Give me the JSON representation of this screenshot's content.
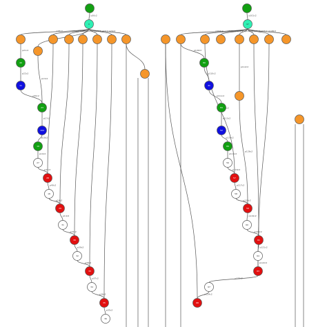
{
  "colors": {
    "orange": "#f5962a",
    "green": "#12a012",
    "blue": "#1010e0",
    "red": "#e21010",
    "cyan": "#2ef0b4",
    "white": "#ffffff",
    "stroke": "#555555"
  },
  "left_graph": {
    "nodes": [
      {
        "id": "L_top_green",
        "color": "green",
        "label": ""
      },
      {
        "id": "L_cyan",
        "color": "cyan",
        "label": "0"
      },
      {
        "id": "L_o1",
        "color": "orange",
        "label": ""
      },
      {
        "id": "L_o2",
        "color": "orange",
        "label": ""
      },
      {
        "id": "L_o3",
        "color": "orange",
        "label": ""
      },
      {
        "id": "L_o4",
        "color": "orange",
        "label": ""
      },
      {
        "id": "L_o5",
        "color": "orange",
        "label": ""
      },
      {
        "id": "L_o6",
        "color": "orange",
        "label": ""
      },
      {
        "id": "L_o7",
        "color": "orange",
        "label": ""
      },
      {
        "id": "L_o8",
        "color": "orange",
        "label": ""
      },
      {
        "id": "L_g1",
        "color": "green",
        "label": "40"
      },
      {
        "id": "L_b1",
        "color": "blue",
        "label": "11"
      },
      {
        "id": "L_o9",
        "color": "orange",
        "label": ""
      },
      {
        "id": "L_g2",
        "color": "green",
        "label": "23"
      },
      {
        "id": "L_b2",
        "color": "blue",
        "label": "194"
      },
      {
        "id": "L_g3",
        "color": "green",
        "label": "19"
      },
      {
        "id": "L_w1",
        "color": "white",
        "label": "27"
      },
      {
        "id": "L_r1",
        "color": "red",
        "label": "28"
      },
      {
        "id": "L_w2",
        "color": "white",
        "label": "18"
      },
      {
        "id": "L_r2",
        "color": "red",
        "label": "29"
      },
      {
        "id": "L_w3",
        "color": "white",
        "label": "31"
      },
      {
        "id": "L_r3",
        "color": "red",
        "label": "30"
      },
      {
        "id": "L_w4",
        "color": "white",
        "label": "32"
      },
      {
        "id": "L_r4",
        "color": "red",
        "label": "33"
      },
      {
        "id": "L_w5",
        "color": "white",
        "label": "34"
      },
      {
        "id": "L_r5",
        "color": "red",
        "label": "35"
      },
      {
        "id": "L_w6",
        "color": "white",
        "label": "36"
      }
    ],
    "edge_labels": [
      "p30c2",
      "p28c2",
      "p29c2",
      "p26c2",
      "p23c2",
      "p24c2",
      "p27c2",
      "p20c2",
      "p25c2",
      "p21c2",
      "p22c2",
      "p30c2",
      "p13c2",
      "p17c2",
      "p18c2",
      "p19c2",
      "p41c2",
      "p40c2",
      "p16c2",
      "p14c2",
      "p15c2",
      "p39c2",
      "p38c2",
      "p37c2",
      "p36c2",
      "p35c2"
    ]
  },
  "right_graph": {
    "nodes": [
      {
        "id": "R_top_green",
        "color": "green",
        "label": ""
      },
      {
        "id": "R_cyan",
        "color": "cyan",
        "label": "97"
      },
      {
        "id": "R_o1",
        "color": "orange",
        "label": ""
      },
      {
        "id": "R_o2",
        "color": "orange",
        "label": ""
      },
      {
        "id": "R_o3",
        "color": "orange",
        "label": ""
      },
      {
        "id": "R_o4",
        "color": "orange",
        "label": ""
      },
      {
        "id": "R_o5",
        "color": "orange",
        "label": ""
      },
      {
        "id": "R_o6",
        "color": "orange",
        "label": ""
      },
      {
        "id": "R_o7",
        "color": "orange",
        "label": ""
      },
      {
        "id": "R_o8",
        "color": "orange",
        "label": ""
      },
      {
        "id": "R_g1",
        "color": "green",
        "label": "80"
      },
      {
        "id": "R_b1",
        "color": "blue",
        "label": "41"
      },
      {
        "id": "R_o9",
        "color": "orange",
        "label": ""
      },
      {
        "id": "R_g2",
        "color": "green",
        "label": "84"
      },
      {
        "id": "R_b2",
        "color": "blue",
        "label": "52"
      },
      {
        "id": "R_g3",
        "color": "green",
        "label": "89"
      },
      {
        "id": "R_w1",
        "color": "white",
        "label": "56"
      },
      {
        "id": "R_r1",
        "color": "red",
        "label": "57"
      },
      {
        "id": "R_w2",
        "color": "white",
        "label": "58"
      },
      {
        "id": "R_r2",
        "color": "red",
        "label": "59"
      },
      {
        "id": "R_w3",
        "color": "white",
        "label": "60"
      },
      {
        "id": "R_r3",
        "color": "red",
        "label": "61"
      },
      {
        "id": "R_w4",
        "color": "white",
        "label": "64"
      },
      {
        "id": "R_r4",
        "color": "red",
        "label": "63"
      },
      {
        "id": "R_w5",
        "color": "white",
        "label": "67"
      },
      {
        "id": "R_r5",
        "color": "red",
        "label": "68"
      }
    ],
    "edge_labels": [
      "p101c2",
      "p102c2",
      "p103c2",
      "p104c2",
      "p105c2",
      "p106c2",
      "p107c2",
      "p108c2",
      "p109c2",
      "p110c2",
      "p111c2",
      "p112c2",
      "p113c2",
      "p114c2",
      "p115c2",
      "p116c2",
      "p117c2",
      "p118c2",
      "p119c2",
      "p120c2",
      "p121c2",
      "p122c2",
      "p123c2",
      "p124c2",
      "p125c2",
      "p126c2"
    ]
  }
}
